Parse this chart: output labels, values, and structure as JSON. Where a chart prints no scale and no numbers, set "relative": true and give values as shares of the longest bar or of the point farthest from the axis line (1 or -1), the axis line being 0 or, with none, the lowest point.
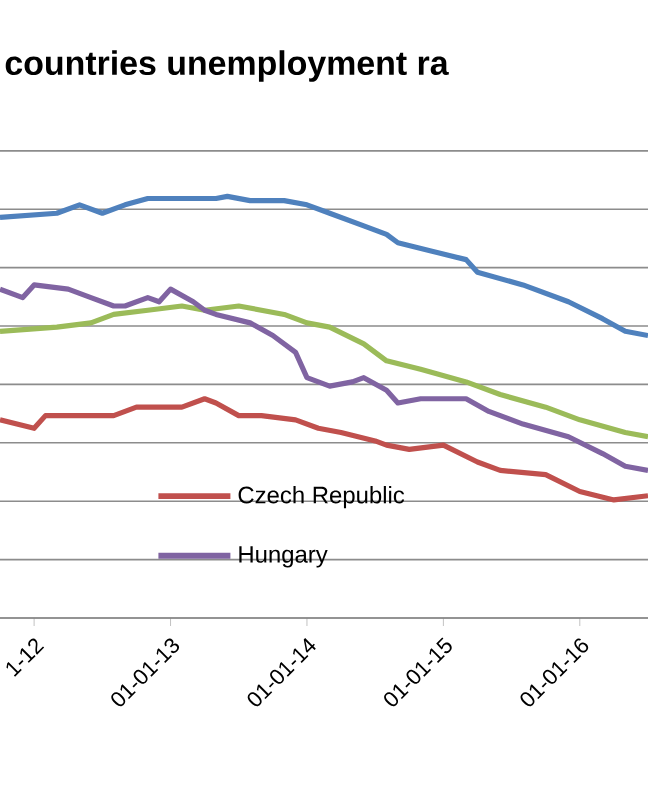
{
  "chart_data": {
    "type": "line",
    "title": "countries unemployment ra",
    "relative": true,
    "grid": "y",
    "legend": "bottom left",
    "xlim": [
      "2011-10",
      "2016-07"
    ],
    "xticks": [
      {
        "value": "2012-01",
        "label": "1-12"
      },
      {
        "value": "2013-01",
        "label": "01-01-13"
      },
      {
        "value": "2014-01",
        "label": "01-01-14"
      },
      {
        "value": "2015-01",
        "label": "01-01-15"
      },
      {
        "value": "2016-01",
        "label": "01-01-16"
      }
    ],
    "series": [
      {
        "color": "#4f81bd",
        "x": [
          "2011-10",
          "2012-03",
          "2012-05",
          "2012-07",
          "2012-09",
          "2012-11",
          "2013-02",
          "2013-05",
          "2013-06",
          "2013-08",
          "2013-11",
          "2014-01",
          "2014-03",
          "2014-06",
          "2014-08",
          "2014-09",
          "2014-12",
          "2015-03",
          "2015-04",
          "2015-08",
          "2015-12",
          "2016-03",
          "2016-05",
          "2016-07"
        ],
        "values": [
          0.95,
          0.96,
          0.98,
          0.96,
          0.98,
          0.995,
          0.995,
          0.995,
          1.0,
          0.99,
          0.99,
          0.98,
          0.96,
          0.93,
          0.91,
          0.89,
          0.87,
          0.85,
          0.82,
          0.79,
          0.75,
          0.71,
          0.68,
          0.67
        ]
      },
      {
        "color": "#9bbb59",
        "x": [
          "2011-10",
          "2012-03",
          "2012-06",
          "2012-08",
          "2012-11",
          "2013-02",
          "2013-04",
          "2013-07",
          "2013-11",
          "2014-01",
          "2014-03",
          "2014-06",
          "2014-08",
          "2014-11",
          "2015-03",
          "2015-06",
          "2015-10",
          "2016-01",
          "2016-05",
          "2016-07"
        ],
        "values": [
          0.68,
          0.69,
          0.7,
          0.72,
          0.73,
          0.74,
          0.73,
          0.74,
          0.72,
          0.7,
          0.69,
          0.65,
          0.61,
          0.59,
          0.56,
          0.53,
          0.5,
          0.47,
          0.44,
          0.43
        ]
      },
      {
        "name": "Czech Republic",
        "color": "#c0504d",
        "x": [
          "2011-10",
          "2012-01",
          "2012-02",
          "2012-04",
          "2012-08",
          "2012-10",
          "2012-12",
          "2013-02",
          "2013-04",
          "2013-05",
          "2013-07",
          "2013-09",
          "2013-12",
          "2014-02",
          "2014-04",
          "2014-07",
          "2014-08",
          "2014-10",
          "2015-01",
          "2015-04",
          "2015-06",
          "2015-10",
          "2016-01",
          "2016-04",
          "2016-07"
        ],
        "values": [
          0.47,
          0.45,
          0.48,
          0.48,
          0.48,
          0.5,
          0.5,
          0.5,
          0.52,
          0.51,
          0.48,
          0.48,
          0.47,
          0.45,
          0.44,
          0.42,
          0.41,
          0.4,
          0.41,
          0.37,
          0.35,
          0.34,
          0.3,
          0.28,
          0.29
        ]
      },
      {
        "name": "Hungary",
        "color": "#8064a2",
        "x": [
          "2011-10",
          "2011-12",
          "2012-01",
          "2012-04",
          "2012-06",
          "2012-08",
          "2012-09",
          "2012-11",
          "2012-12",
          "2013-01",
          "2013-03",
          "2013-04",
          "2013-05",
          "2013-08",
          "2013-10",
          "2013-12",
          "2014-01",
          "2014-03",
          "2014-05",
          "2014-06",
          "2014-08",
          "2014-09",
          "2014-11",
          "2015-01",
          "2015-03",
          "2015-05",
          "2015-08",
          "2015-12",
          "2016-03",
          "2016-05",
          "2016-07"
        ],
        "values": [
          0.78,
          0.76,
          0.79,
          0.78,
          0.76,
          0.74,
          0.74,
          0.76,
          0.75,
          0.78,
          0.75,
          0.73,
          0.72,
          0.7,
          0.67,
          0.63,
          0.57,
          0.55,
          0.56,
          0.57,
          0.54,
          0.51,
          0.52,
          0.52,
          0.52,
          0.49,
          0.46,
          0.43,
          0.39,
          0.36,
          0.35
        ]
      }
    ]
  }
}
